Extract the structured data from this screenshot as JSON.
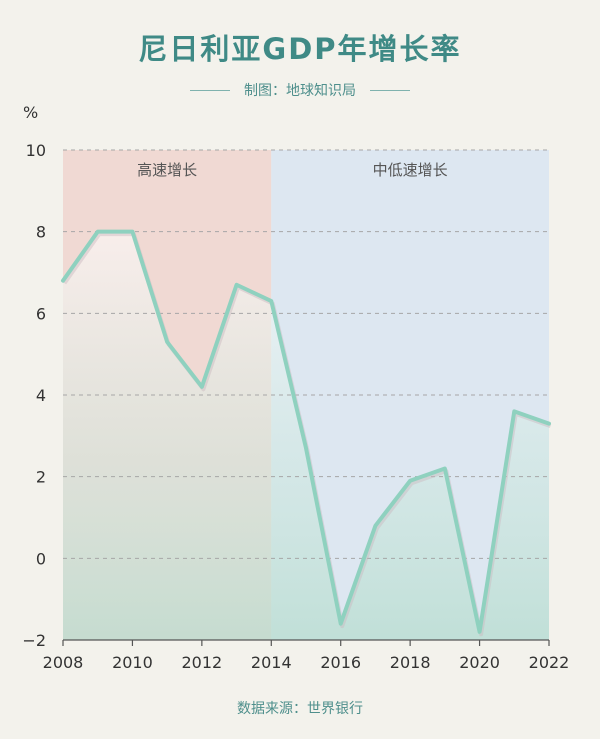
{
  "header": {
    "title": "尼日利亚GDP年增长率",
    "credit": "制图：地球知识局"
  },
  "footer": {
    "source": "数据来源：世界银行"
  },
  "chart_data": {
    "type": "line",
    "title": "尼日利亚GDP年增长率",
    "ylabel": "%",
    "xlabel": "",
    "xlim": [
      2008,
      2022
    ],
    "ylim": [
      -2,
      10
    ],
    "x_ticks": [
      2008,
      2010,
      2012,
      2014,
      2016,
      2018,
      2020,
      2022
    ],
    "y_ticks": [
      -2,
      0,
      2,
      4,
      6,
      8,
      10
    ],
    "grid": true,
    "series": [
      {
        "x": [
          2008,
          2009,
          2010,
          2011,
          2012,
          2013,
          2014,
          2015,
          2016,
          2017,
          2018,
          2019,
          2020,
          2021,
          2022
        ],
        "y": [
          6.8,
          8.0,
          8.0,
          5.3,
          4.2,
          6.7,
          6.3,
          2.7,
          -1.6,
          0.8,
          1.9,
          2.2,
          -1.8,
          3.6,
          3.3
        ],
        "color": "#8fd1bf"
      }
    ],
    "regions": [
      {
        "label": "高速增长",
        "from": 2008,
        "to": 2014,
        "color": "#f0d9d3"
      },
      {
        "label": "中低速增长",
        "from": 2014,
        "to": 2022,
        "color": "#dde7f1"
      }
    ]
  }
}
